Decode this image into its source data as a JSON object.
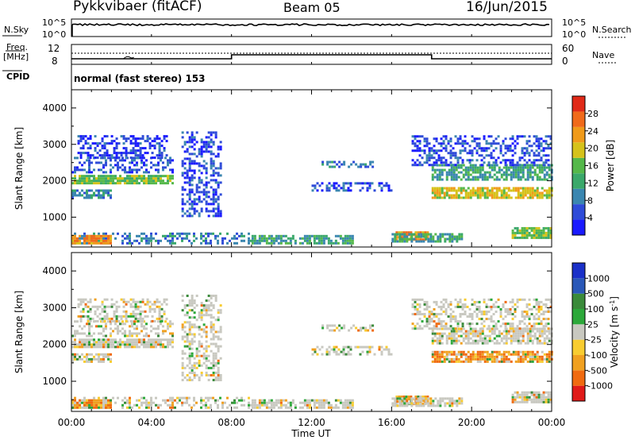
{
  "header": {
    "radar": "Pykkvibaer (fitACF)",
    "beam": "Beam 05",
    "date": "16/Jun/2015"
  },
  "status_panels": {
    "nsky_label": "N.Sky",
    "nsky_ticks": [
      "10^5",
      "10^0"
    ],
    "nsearch_label": "N.Search",
    "nsearch_ticks": [
      "10^5",
      "10^0"
    ],
    "freq_label_1": "Freq.",
    "freq_label_2": "[MHz]",
    "freq_ticks": [
      "12",
      "8"
    ],
    "nave_label": "Nave",
    "nave_ticks": [
      "60",
      "0"
    ],
    "cpid_label": "CPID",
    "cpid_text": "normal (fast stereo) 153"
  },
  "colors": {
    "power": [
      "#1a1aff",
      "#2e4bd8",
      "#3a86b0",
      "#3aa86a",
      "#55b84a",
      "#d6c21a",
      "#f09a1a",
      "#f06a1a",
      "#e02a18"
    ],
    "velocity": [
      "#e01a18",
      "#f06a10",
      "#f0a020",
      "#f8cc30",
      "#c8c8c0",
      "#2ca83a",
      "#3a8a3a",
      "#2a58b8",
      "#1a30c8"
    ]
  },
  "chart_data": [
    {
      "type": "heatmap",
      "quantity": "Power",
      "ylabel": "Slant Range [km]",
      "xlim": [
        "00:00",
        "24:00"
      ],
      "ylim": [
        180,
        4500
      ],
      "yticks": [
        1000,
        2000,
        3000,
        4000
      ],
      "colorbar_label": "Power [dB]",
      "colorbar_ticks": [
        "4",
        "8",
        "12",
        "16",
        "20",
        "24",
        "28"
      ],
      "colorbar_range": [
        0,
        32
      ],
      "echo_regions": [
        {
          "t_start": 0.0,
          "t_end": 5.0,
          "range_km": [
            1900,
            2150
          ],
          "power_db": 16
        },
        {
          "t_start": 0.0,
          "t_end": 5.0,
          "range_km": [
            2200,
            2600
          ],
          "power_db": 6
        },
        {
          "t_start": 0.3,
          "t_end": 4.8,
          "range_km": [
            2600,
            3200
          ],
          "power_db": 4
        },
        {
          "t_start": 0.0,
          "t_end": 2.0,
          "range_km": [
            1500,
            1700
          ],
          "power_db": 10
        },
        {
          "t_start": 0.0,
          "t_end": 9.0,
          "range_km": [
            250,
            550
          ],
          "power_db": 8
        },
        {
          "t_start": 0.0,
          "t_end": 2.0,
          "range_km": [
            250,
            450
          ],
          "power_db": 24
        },
        {
          "t_start": 5.5,
          "t_end": 7.5,
          "range_km": [
            1000,
            3300
          ],
          "power_db": 5
        },
        {
          "t_start": 9.0,
          "t_end": 14.0,
          "range_km": [
            250,
            500
          ],
          "power_db": 12
        },
        {
          "t_start": 12.5,
          "t_end": 15.0,
          "range_km": [
            2350,
            2500
          ],
          "power_db": 8
        },
        {
          "t_start": 12.0,
          "t_end": 16.0,
          "range_km": [
            1700,
            1900
          ],
          "power_db": 5
        },
        {
          "t_start": 16.2,
          "t_end": 17.8,
          "range_km": [
            350,
            600
          ],
          "power_db": 24
        },
        {
          "t_start": 16.0,
          "t_end": 19.5,
          "range_km": [
            300,
            550
          ],
          "power_db": 12
        },
        {
          "t_start": 18.0,
          "t_end": 24.0,
          "range_km": [
            1500,
            1800
          ],
          "power_db": 20
        },
        {
          "t_start": 18.0,
          "t_end": 24.0,
          "range_km": [
            2000,
            2400
          ],
          "power_db": 12
        },
        {
          "t_start": 17.0,
          "t_end": 24.0,
          "range_km": [
            2400,
            3200
          ],
          "power_db": 5
        },
        {
          "t_start": 22.0,
          "t_end": 24.0,
          "range_km": [
            400,
            700
          ],
          "power_db": 16
        }
      ]
    },
    {
      "type": "heatmap",
      "quantity": "Velocity",
      "ylabel": "Slant Range [km]",
      "xlabel": "Time UT",
      "xlim": [
        "00:00",
        "24:00"
      ],
      "xticks": [
        "00:00",
        "04:00",
        "08:00",
        "12:00",
        "16:00",
        "20:00",
        "00:00"
      ],
      "ylim": [
        180,
        4500
      ],
      "yticks": [
        1000,
        2000,
        3000,
        4000
      ],
      "colorbar_label_1": "Velocity  [m s",
      "colorbar_label_sup": "-1",
      "colorbar_label_2": "]",
      "colorbar_ticks": [
        "-1000",
        "-500",
        "-100",
        "-25",
        "25",
        "100",
        "500",
        "1000"
      ],
      "colorbar_bins": 9
    }
  ]
}
